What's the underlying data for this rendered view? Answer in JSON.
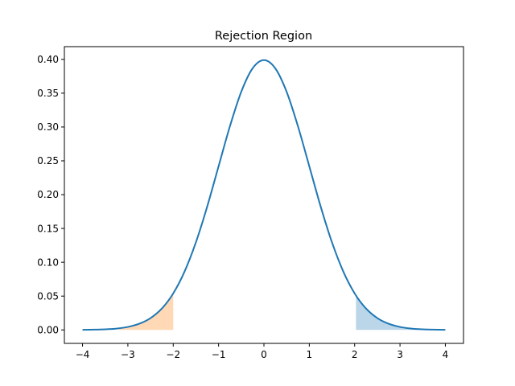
{
  "chart_data": {
    "type": "line",
    "title": "Rejection Region",
    "xlabel": "",
    "ylabel": "",
    "xlim": [
      -4.4,
      4.4
    ],
    "ylim": [
      -0.0199,
      0.4188
    ],
    "xticks": [
      -4,
      -3,
      -2,
      -1,
      0,
      1,
      2,
      3,
      4
    ],
    "xtick_labels": [
      "−4",
      "−3",
      "−2",
      "−1",
      "0",
      "1",
      "2",
      "3",
      "4"
    ],
    "yticks": [
      0.0,
      0.05,
      0.1,
      0.15,
      0.2,
      0.25,
      0.3,
      0.35,
      0.4
    ],
    "ytick_labels": [
      "0.00",
      "0.05",
      "0.10",
      "0.15",
      "0.20",
      "0.25",
      "0.30",
      "0.35",
      "0.40"
    ],
    "grid": false,
    "series": [
      {
        "kind": "line",
        "color": "#1f77b4",
        "x": [
          -4.0,
          -3.75,
          -3.5,
          -3.25,
          -3.0,
          -2.75,
          -2.5,
          -2.25,
          -2.0,
          -1.75,
          -1.5,
          -1.25,
          -1.0,
          -0.75,
          -0.5,
          -0.25,
          0.0,
          0.25,
          0.5,
          0.75,
          1.0,
          1.25,
          1.5,
          1.75,
          2.0,
          2.25,
          2.5,
          2.75,
          3.0,
          3.25,
          3.5,
          3.75,
          4.0
        ],
        "y": [
          0.0001,
          0.0004,
          0.0009,
          0.002,
          0.0044,
          0.0091,
          0.0175,
          0.0317,
          0.054,
          0.0863,
          0.1295,
          0.1826,
          0.242,
          0.3011,
          0.3521,
          0.3867,
          0.3989,
          0.3867,
          0.3521,
          0.3011,
          0.242,
          0.1826,
          0.1295,
          0.0863,
          0.054,
          0.0317,
          0.0175,
          0.0091,
          0.0044,
          0.002,
          0.0009,
          0.0004,
          0.0001
        ]
      },
      {
        "kind": "area",
        "color": "#1f77b4",
        "opacity": 0.3,
        "x": [
          2.03,
          2.25,
          2.5,
          2.75,
          3.0,
          3.25,
          3.5,
          3.75,
          4.0
        ],
        "y": [
          0.0508,
          0.0317,
          0.0175,
          0.0091,
          0.0044,
          0.002,
          0.0009,
          0.0004,
          0.0001
        ]
      },
      {
        "kind": "area",
        "color": "#ff7f0e",
        "opacity": 0.3,
        "x": [
          -3.2,
          -3.0,
          -2.75,
          -2.5,
          -2.25,
          -2.0
        ],
        "y": [
          0.0024,
          0.0044,
          0.0091,
          0.0175,
          0.0317,
          0.054
        ]
      }
    ]
  }
}
